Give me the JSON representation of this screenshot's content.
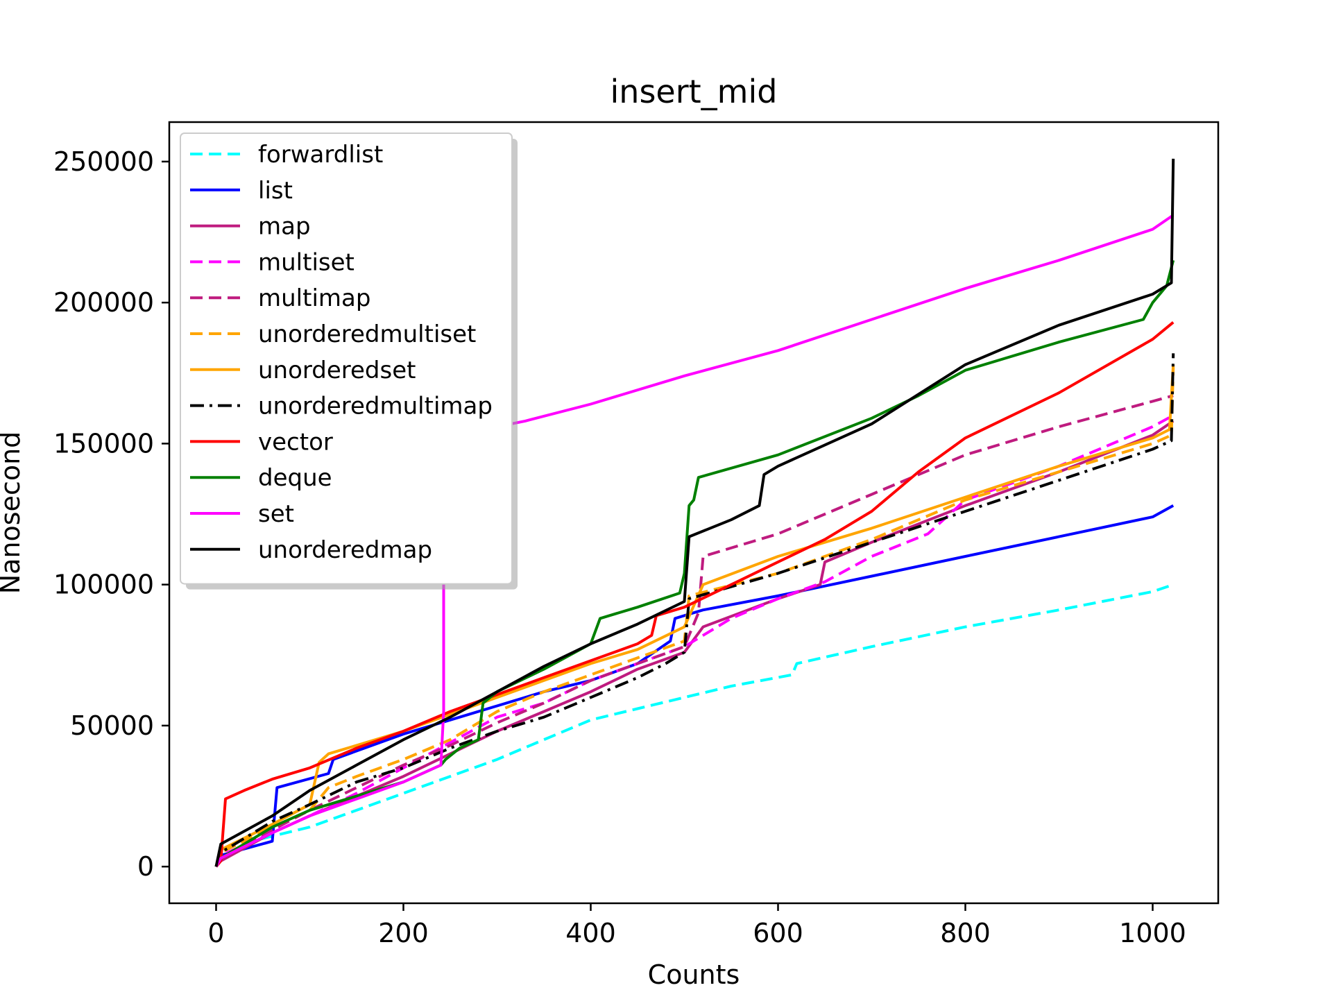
{
  "chart_data": {
    "type": "line",
    "title": "insert_mid",
    "xlabel": "Counts",
    "ylabel": "Nanosecond",
    "xlim": [
      -50,
      1070
    ],
    "ylim": [
      -13000,
      264000
    ],
    "xticks": [
      0,
      200,
      400,
      600,
      800,
      1000
    ],
    "xtick_labels": [
      "0",
      "200",
      "400",
      "600",
      "800",
      "1000"
    ],
    "yticks": [
      0,
      50000,
      100000,
      150000,
      200000,
      250000
    ],
    "ytick_labels": [
      "0",
      "50000",
      "100000",
      "150000",
      "200000",
      "250000"
    ],
    "grid": false,
    "legend_position": "top-left",
    "series": [
      {
        "name": "forwardlist",
        "color": "#00ffff",
        "style": "dashed",
        "points": [
          [
            0,
            0
          ],
          [
            5,
            4000
          ],
          [
            50,
            10000
          ],
          [
            100,
            14000
          ],
          [
            150,
            20000
          ],
          [
            200,
            26000
          ],
          [
            250,
            32000
          ],
          [
            300,
            38000
          ],
          [
            350,
            45000
          ],
          [
            400,
            52000
          ],
          [
            450,
            56000
          ],
          [
            500,
            60000
          ],
          [
            550,
            64000
          ],
          [
            615,
            68000
          ],
          [
            620,
            72000
          ],
          [
            700,
            78000
          ],
          [
            800,
            85000
          ],
          [
            900,
            91000
          ],
          [
            1000,
            97500
          ],
          [
            1022,
            100000
          ]
        ]
      },
      {
        "name": "list",
        "color": "#0000ff",
        "style": "solid",
        "points": [
          [
            0,
            0
          ],
          [
            5,
            4000
          ],
          [
            60,
            9000
          ],
          [
            65,
            28000
          ],
          [
            120,
            33000
          ],
          [
            125,
            38000
          ],
          [
            200,
            47000
          ],
          [
            250,
            52000
          ],
          [
            300,
            57000
          ],
          [
            350,
            62000
          ],
          [
            400,
            66000
          ],
          [
            450,
            72000
          ],
          [
            485,
            80000
          ],
          [
            490,
            88000
          ],
          [
            520,
            91000
          ],
          [
            600,
            96000
          ],
          [
            700,
            103000
          ],
          [
            800,
            110000
          ],
          [
            900,
            117000
          ],
          [
            1000,
            124000
          ],
          [
            1022,
            128000
          ]
        ]
      },
      {
        "name": "map",
        "color": "#bf1b7f",
        "style": "solid",
        "points": [
          [
            0,
            0
          ],
          [
            5,
            2000
          ],
          [
            60,
            12000
          ],
          [
            100,
            18000
          ],
          [
            150,
            25000
          ],
          [
            200,
            32000
          ],
          [
            250,
            40000
          ],
          [
            300,
            48000
          ],
          [
            350,
            55000
          ],
          [
            400,
            62000
          ],
          [
            450,
            70000
          ],
          [
            500,
            76000
          ],
          [
            520,
            85000
          ],
          [
            600,
            95000
          ],
          [
            645,
            100000
          ],
          [
            650,
            108000
          ],
          [
            700,
            115000
          ],
          [
            800,
            128000
          ],
          [
            900,
            140000
          ],
          [
            1000,
            153000
          ],
          [
            1022,
            158000
          ]
        ]
      },
      {
        "name": "multiset",
        "color": "#ff00ff",
        "style": "dashed",
        "points": [
          [
            0,
            0
          ],
          [
            5,
            4000
          ],
          [
            60,
            12000
          ],
          [
            100,
            18000
          ],
          [
            150,
            26000
          ],
          [
            200,
            35000
          ],
          [
            250,
            44000
          ],
          [
            300,
            53000
          ],
          [
            350,
            58000
          ],
          [
            400,
            66000
          ],
          [
            450,
            72000
          ],
          [
            500,
            78000
          ],
          [
            550,
            88000
          ],
          [
            600,
            95000
          ],
          [
            650,
            101000
          ],
          [
            700,
            110000
          ],
          [
            760,
            118000
          ],
          [
            800,
            130000
          ],
          [
            900,
            142000
          ],
          [
            1000,
            156000
          ],
          [
            1022,
            160000
          ]
        ]
      },
      {
        "name": "multimap",
        "color": "#bf1b7f",
        "style": "dashed",
        "points": [
          [
            0,
            0
          ],
          [
            5,
            3000
          ],
          [
            60,
            13000
          ],
          [
            100,
            20000
          ],
          [
            150,
            28000
          ],
          [
            200,
            36000
          ],
          [
            250,
            43000
          ],
          [
            300,
            51000
          ],
          [
            350,
            58000
          ],
          [
            400,
            66000
          ],
          [
            450,
            72000
          ],
          [
            500,
            78000
          ],
          [
            515,
            90000
          ],
          [
            520,
            110000
          ],
          [
            600,
            118000
          ],
          [
            700,
            132000
          ],
          [
            800,
            146000
          ],
          [
            900,
            156000
          ],
          [
            1000,
            165000
          ],
          [
            1022,
            167000
          ]
        ]
      },
      {
        "name": "unorderedmultiset",
        "color": "#ffa500",
        "style": "dashed",
        "points": [
          [
            0,
            0
          ],
          [
            5,
            5000
          ],
          [
            60,
            14000
          ],
          [
            100,
            20000
          ],
          [
            120,
            28000
          ],
          [
            150,
            32000
          ],
          [
            200,
            38000
          ],
          [
            250,
            45000
          ],
          [
            300,
            55000
          ],
          [
            350,
            62000
          ],
          [
            400,
            68000
          ],
          [
            450,
            74000
          ],
          [
            500,
            80000
          ],
          [
            505,
            96000
          ],
          [
            600,
            104000
          ],
          [
            700,
            116000
          ],
          [
            800,
            130000
          ],
          [
            900,
            140000
          ],
          [
            1000,
            150000
          ],
          [
            1020,
            153000
          ],
          [
            1022,
            177000
          ]
        ]
      },
      {
        "name": "unorderedset",
        "color": "#ffa500",
        "style": "solid",
        "points": [
          [
            0,
            0
          ],
          [
            5,
            6000
          ],
          [
            60,
            15000
          ],
          [
            100,
            22000
          ],
          [
            110,
            37000
          ],
          [
            120,
            40000
          ],
          [
            150,
            43000
          ],
          [
            200,
            48000
          ],
          [
            250,
            54000
          ],
          [
            300,
            60000
          ],
          [
            350,
            66000
          ],
          [
            400,
            72000
          ],
          [
            450,
            77000
          ],
          [
            500,
            85000
          ],
          [
            520,
            100000
          ],
          [
            600,
            110000
          ],
          [
            700,
            120000
          ],
          [
            800,
            131000
          ],
          [
            900,
            142000
          ],
          [
            1000,
            152000
          ],
          [
            1018,
            155000
          ],
          [
            1022,
            178000
          ]
        ]
      },
      {
        "name": "unorderedmultimap",
        "color": "#000000",
        "style": "dashdot",
        "points": [
          [
            0,
            0
          ],
          [
            5,
            5000
          ],
          [
            60,
            16000
          ],
          [
            100,
            22000
          ],
          [
            150,
            30000
          ],
          [
            200,
            35000
          ],
          [
            250,
            42000
          ],
          [
            300,
            48000
          ],
          [
            350,
            53000
          ],
          [
            400,
            60000
          ],
          [
            450,
            67000
          ],
          [
            480,
            72000
          ],
          [
            500,
            76000
          ],
          [
            505,
            95000
          ],
          [
            600,
            104000
          ],
          [
            700,
            115000
          ],
          [
            800,
            126000
          ],
          [
            900,
            137000
          ],
          [
            1000,
            148000
          ],
          [
            1020,
            151000
          ],
          [
            1022,
            182000
          ]
        ]
      },
      {
        "name": "vector",
        "color": "#ff0000",
        "style": "solid",
        "points": [
          [
            0,
            0
          ],
          [
            5,
            2000
          ],
          [
            10,
            24000
          ],
          [
            30,
            27000
          ],
          [
            60,
            31000
          ],
          [
            100,
            35000
          ],
          [
            150,
            42000
          ],
          [
            200,
            48000
          ],
          [
            250,
            55000
          ],
          [
            300,
            61000
          ],
          [
            350,
            67000
          ],
          [
            400,
            73000
          ],
          [
            450,
            79000
          ],
          [
            465,
            82000
          ],
          [
            470,
            89000
          ],
          [
            500,
            92000
          ],
          [
            550,
            100000
          ],
          [
            600,
            108000
          ],
          [
            650,
            116000
          ],
          [
            700,
            126000
          ],
          [
            750,
            140000
          ],
          [
            800,
            152000
          ],
          [
            900,
            168000
          ],
          [
            1000,
            187000
          ],
          [
            1022,
            193000
          ]
        ]
      },
      {
        "name": "deque",
        "color": "#008000",
        "style": "solid",
        "points": [
          [
            0,
            0
          ],
          [
            5,
            3000
          ],
          [
            60,
            14000
          ],
          [
            100,
            20000
          ],
          [
            150,
            25000
          ],
          [
            200,
            30000
          ],
          [
            240,
            36000
          ],
          [
            245,
            38000
          ],
          [
            260,
            42000
          ],
          [
            280,
            45000
          ],
          [
            285,
            58000
          ],
          [
            300,
            62000
          ],
          [
            350,
            70000
          ],
          [
            400,
            79000
          ],
          [
            410,
            88000
          ],
          [
            450,
            92000
          ],
          [
            495,
            97000
          ],
          [
            500,
            104000
          ],
          [
            505,
            128000
          ],
          [
            510,
            130000
          ],
          [
            515,
            138000
          ],
          [
            600,
            146000
          ],
          [
            700,
            159000
          ],
          [
            750,
            167000
          ],
          [
            800,
            176000
          ],
          [
            900,
            186000
          ],
          [
            990,
            194000
          ],
          [
            1000,
            200000
          ],
          [
            1015,
            206000
          ],
          [
            1022,
            215000
          ]
        ]
      },
      {
        "name": "set",
        "color": "#ff00ff",
        "style": "solid",
        "points": [
          [
            0,
            0
          ],
          [
            5,
            3000
          ],
          [
            60,
            12000
          ],
          [
            100,
            18000
          ],
          [
            150,
            24000
          ],
          [
            200,
            30000
          ],
          [
            240,
            36000
          ],
          [
            243,
            55000
          ],
          [
            243,
            100000
          ],
          [
            300,
            156000
          ],
          [
            330,
            158000
          ],
          [
            400,
            164000
          ],
          [
            500,
            174000
          ],
          [
            600,
            183000
          ],
          [
            700,
            194000
          ],
          [
            800,
            205000
          ],
          [
            900,
            215000
          ],
          [
            1000,
            226000
          ],
          [
            1022,
            231000
          ]
        ]
      },
      {
        "name": "unorderedmap",
        "color": "#000000",
        "style": "solid",
        "points": [
          [
            0,
            0
          ],
          [
            5,
            8000
          ],
          [
            60,
            18000
          ],
          [
            100,
            27000
          ],
          [
            150,
            36000
          ],
          [
            200,
            45000
          ],
          [
            250,
            53000
          ],
          [
            300,
            62000
          ],
          [
            350,
            71000
          ],
          [
            400,
            79000
          ],
          [
            450,
            86000
          ],
          [
            500,
            94000
          ],
          [
            505,
            117000
          ],
          [
            550,
            123000
          ],
          [
            580,
            128000
          ],
          [
            585,
            139000
          ],
          [
            600,
            142000
          ],
          [
            700,
            157000
          ],
          [
            800,
            178000
          ],
          [
            900,
            192000
          ],
          [
            1000,
            203000
          ],
          [
            1020,
            207000
          ],
          [
            1022,
            251000
          ]
        ]
      }
    ]
  }
}
